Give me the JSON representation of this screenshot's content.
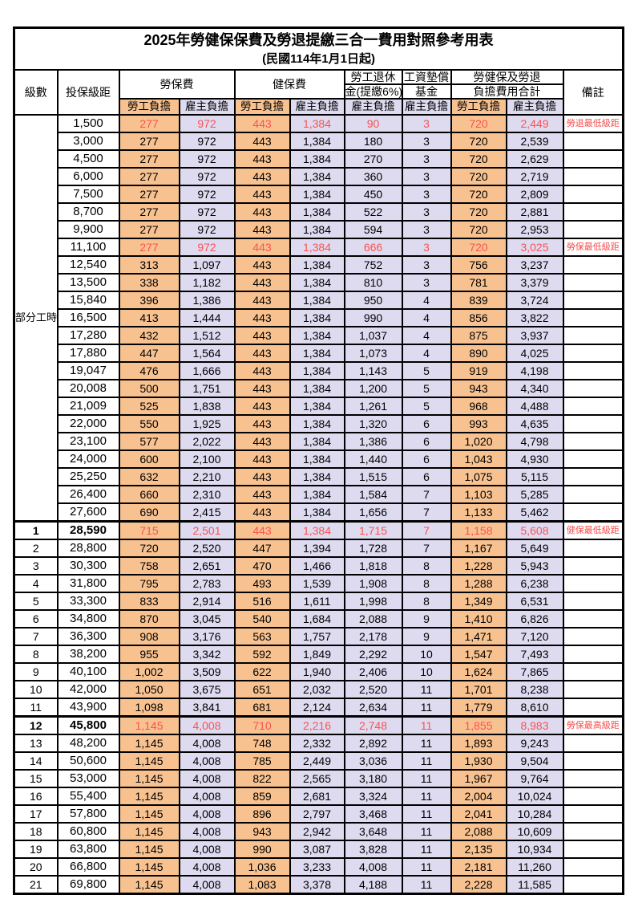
{
  "title": "2025年勞健保保費及勞退提繳三合一費用對照參考用表",
  "subtitle": "(民國114年1月1日起)",
  "header": {
    "level": "級數",
    "bracket": "投保級距",
    "labor_group": "勞保費",
    "health_group": "健保費",
    "pension_line1": "勞工退休",
    "pension_line2": "金(提繳6%)",
    "fund_line1": "工資墊償",
    "fund_line2": "基金",
    "total_line1": "勞健保及勞退",
    "total_line2": "負擔費用合計",
    "remark": "備註",
    "employee_label": "勞工負擔",
    "employer_label": "雇主負擔"
  },
  "part_time_label": "部分工時",
  "colors": {
    "employee_fill": "#F8C290",
    "employer_fill": "#DEDBF0",
    "highlight_text": "#FA5252",
    "grid": "#000000"
  },
  "rows": [
    {
      "level": "",
      "bracket": "1,500",
      "values": [
        "277",
        "972",
        "443",
        "1,384",
        "90",
        "3",
        "720",
        "2,449"
      ],
      "remark": "勞退最低級距",
      "red": true,
      "bold": false,
      "thick_top": false
    },
    {
      "level": "",
      "bracket": "3,000",
      "values": [
        "277",
        "972",
        "443",
        "1,384",
        "180",
        "3",
        "720",
        "2,539"
      ],
      "remark": "",
      "red": false,
      "bold": false,
      "thick_top": false
    },
    {
      "level": "",
      "bracket": "4,500",
      "values": [
        "277",
        "972",
        "443",
        "1,384",
        "270",
        "3",
        "720",
        "2,629"
      ],
      "remark": "",
      "red": false,
      "bold": false,
      "thick_top": false
    },
    {
      "level": "",
      "bracket": "6,000",
      "values": [
        "277",
        "972",
        "443",
        "1,384",
        "360",
        "3",
        "720",
        "2,719"
      ],
      "remark": "",
      "red": false,
      "bold": false,
      "thick_top": false
    },
    {
      "level": "",
      "bracket": "7,500",
      "values": [
        "277",
        "972",
        "443",
        "1,384",
        "450",
        "3",
        "720",
        "2,809"
      ],
      "remark": "",
      "red": false,
      "bold": false,
      "thick_top": false
    },
    {
      "level": "",
      "bracket": "8,700",
      "values": [
        "277",
        "972",
        "443",
        "1,384",
        "522",
        "3",
        "720",
        "2,881"
      ],
      "remark": "",
      "red": false,
      "bold": false,
      "thick_top": false
    },
    {
      "level": "",
      "bracket": "9,900",
      "values": [
        "277",
        "972",
        "443",
        "1,384",
        "594",
        "3",
        "720",
        "2,953"
      ],
      "remark": "",
      "red": false,
      "bold": false,
      "thick_top": false
    },
    {
      "level": "",
      "bracket": "11,100",
      "values": [
        "277",
        "972",
        "443",
        "1,384",
        "666",
        "3",
        "720",
        "3,025"
      ],
      "remark": "勞保最低級距",
      "red": true,
      "bold": false,
      "thick_top": false
    },
    {
      "level": "",
      "bracket": "12,540",
      "values": [
        "313",
        "1,097",
        "443",
        "1,384",
        "752",
        "3",
        "756",
        "3,237"
      ],
      "remark": "",
      "red": false,
      "bold": false,
      "thick_top": false
    },
    {
      "level": "",
      "bracket": "13,500",
      "values": [
        "338",
        "1,182",
        "443",
        "1,384",
        "810",
        "3",
        "781",
        "3,379"
      ],
      "remark": "",
      "red": false,
      "bold": false,
      "thick_top": false
    },
    {
      "level": "",
      "bracket": "15,840",
      "values": [
        "396",
        "1,386",
        "443",
        "1,384",
        "950",
        "4",
        "839",
        "3,724"
      ],
      "remark": "",
      "red": false,
      "bold": false,
      "thick_top": false
    },
    {
      "level": "",
      "bracket": "16,500",
      "values": [
        "413",
        "1,444",
        "443",
        "1,384",
        "990",
        "4",
        "856",
        "3,822"
      ],
      "remark": "",
      "red": false,
      "bold": false,
      "thick_top": false
    },
    {
      "level": "",
      "bracket": "17,280",
      "values": [
        "432",
        "1,512",
        "443",
        "1,384",
        "1,037",
        "4",
        "875",
        "3,937"
      ],
      "remark": "",
      "red": false,
      "bold": false,
      "thick_top": false
    },
    {
      "level": "",
      "bracket": "17,880",
      "values": [
        "447",
        "1,564",
        "443",
        "1,384",
        "1,073",
        "4",
        "890",
        "4,025"
      ],
      "remark": "",
      "red": false,
      "bold": false,
      "thick_top": false
    },
    {
      "level": "",
      "bracket": "19,047",
      "values": [
        "476",
        "1,666",
        "443",
        "1,384",
        "1,143",
        "5",
        "919",
        "4,198"
      ],
      "remark": "",
      "red": false,
      "bold": false,
      "thick_top": false
    },
    {
      "level": "",
      "bracket": "20,008",
      "values": [
        "500",
        "1,751",
        "443",
        "1,384",
        "1,200",
        "5",
        "943",
        "4,340"
      ],
      "remark": "",
      "red": false,
      "bold": false,
      "thick_top": false
    },
    {
      "level": "",
      "bracket": "21,009",
      "values": [
        "525",
        "1,838",
        "443",
        "1,384",
        "1,261",
        "5",
        "968",
        "4,488"
      ],
      "remark": "",
      "red": false,
      "bold": false,
      "thick_top": false
    },
    {
      "level": "",
      "bracket": "22,000",
      "values": [
        "550",
        "1,925",
        "443",
        "1,384",
        "1,320",
        "6",
        "993",
        "4,635"
      ],
      "remark": "",
      "red": false,
      "bold": false,
      "thick_top": false
    },
    {
      "level": "",
      "bracket": "23,100",
      "values": [
        "577",
        "2,022",
        "443",
        "1,384",
        "1,386",
        "6",
        "1,020",
        "4,798"
      ],
      "remark": "",
      "red": false,
      "bold": false,
      "thick_top": false
    },
    {
      "level": "",
      "bracket": "24,000",
      "values": [
        "600",
        "2,100",
        "443",
        "1,384",
        "1,440",
        "6",
        "1,043",
        "4,930"
      ],
      "remark": "",
      "red": false,
      "bold": false,
      "thick_top": false
    },
    {
      "level": "",
      "bracket": "25,250",
      "values": [
        "632",
        "2,210",
        "443",
        "1,384",
        "1,515",
        "6",
        "1,075",
        "5,115"
      ],
      "remark": "",
      "red": false,
      "bold": false,
      "thick_top": false
    },
    {
      "level": "",
      "bracket": "26,400",
      "values": [
        "660",
        "2,310",
        "443",
        "1,384",
        "1,584",
        "7",
        "1,103",
        "5,285"
      ],
      "remark": "",
      "red": false,
      "bold": false,
      "thick_top": false
    },
    {
      "level": "",
      "bracket": "27,600",
      "values": [
        "690",
        "2,415",
        "443",
        "1,384",
        "1,656",
        "7",
        "1,133",
        "5,462"
      ],
      "remark": "",
      "red": false,
      "bold": false,
      "thick_top": false
    },
    {
      "level": "1",
      "bracket": "28,590",
      "values": [
        "715",
        "2,501",
        "443",
        "1,384",
        "1,715",
        "7",
        "1,158",
        "5,608"
      ],
      "remark": "健保最低級距",
      "red": true,
      "bold": true,
      "thick_top": true
    },
    {
      "level": "2",
      "bracket": "28,800",
      "values": [
        "720",
        "2,520",
        "447",
        "1,394",
        "1,728",
        "7",
        "1,167",
        "5,649"
      ],
      "remark": "",
      "red": false,
      "bold": false,
      "thick_top": false
    },
    {
      "level": "3",
      "bracket": "30,300",
      "values": [
        "758",
        "2,651",
        "470",
        "1,466",
        "1,818",
        "8",
        "1,228",
        "5,943"
      ],
      "remark": "",
      "red": false,
      "bold": false,
      "thick_top": false
    },
    {
      "level": "4",
      "bracket": "31,800",
      "values": [
        "795",
        "2,783",
        "493",
        "1,539",
        "1,908",
        "8",
        "1,288",
        "6,238"
      ],
      "remark": "",
      "red": false,
      "bold": false,
      "thick_top": false
    },
    {
      "level": "5",
      "bracket": "33,300",
      "values": [
        "833",
        "2,914",
        "516",
        "1,611",
        "1,998",
        "8",
        "1,349",
        "6,531"
      ],
      "remark": "",
      "red": false,
      "bold": false,
      "thick_top": false
    },
    {
      "level": "6",
      "bracket": "34,800",
      "values": [
        "870",
        "3,045",
        "540",
        "1,684",
        "2,088",
        "9",
        "1,410",
        "6,826"
      ],
      "remark": "",
      "red": false,
      "bold": false,
      "thick_top": false
    },
    {
      "level": "7",
      "bracket": "36,300",
      "values": [
        "908",
        "3,176",
        "563",
        "1,757",
        "2,178",
        "9",
        "1,471",
        "7,120"
      ],
      "remark": "",
      "red": false,
      "bold": false,
      "thick_top": false
    },
    {
      "level": "8",
      "bracket": "38,200",
      "values": [
        "955",
        "3,342",
        "592",
        "1,849",
        "2,292",
        "10",
        "1,547",
        "7,493"
      ],
      "remark": "",
      "red": false,
      "bold": false,
      "thick_top": false
    },
    {
      "level": "9",
      "bracket": "40,100",
      "values": [
        "1,002",
        "3,509",
        "622",
        "1,940",
        "2,406",
        "10",
        "1,624",
        "7,865"
      ],
      "remark": "",
      "red": false,
      "bold": false,
      "thick_top": false
    },
    {
      "level": "10",
      "bracket": "42,000",
      "values": [
        "1,050",
        "3,675",
        "651",
        "2,032",
        "2,520",
        "11",
        "1,701",
        "8,238"
      ],
      "remark": "",
      "red": false,
      "bold": false,
      "thick_top": false
    },
    {
      "level": "11",
      "bracket": "43,900",
      "values": [
        "1,098",
        "3,841",
        "681",
        "2,124",
        "2,634",
        "11",
        "1,779",
        "8,610"
      ],
      "remark": "",
      "red": false,
      "bold": false,
      "thick_top": false
    },
    {
      "level": "12",
      "bracket": "45,800",
      "values": [
        "1,145",
        "4,008",
        "710",
        "2,216",
        "2,748",
        "11",
        "1,855",
        "8,983"
      ],
      "remark": "勞保最高級距",
      "red": true,
      "bold": true,
      "thick_top": true
    },
    {
      "level": "13",
      "bracket": "48,200",
      "values": [
        "1,145",
        "4,008",
        "748",
        "2,332",
        "2,892",
        "11",
        "1,893",
        "9,243"
      ],
      "remark": "",
      "red": false,
      "bold": false,
      "thick_top": false
    },
    {
      "level": "14",
      "bracket": "50,600",
      "values": [
        "1,145",
        "4,008",
        "785",
        "2,449",
        "3,036",
        "11",
        "1,930",
        "9,504"
      ],
      "remark": "",
      "red": false,
      "bold": false,
      "thick_top": false
    },
    {
      "level": "15",
      "bracket": "53,000",
      "values": [
        "1,145",
        "4,008",
        "822",
        "2,565",
        "3,180",
        "11",
        "1,967",
        "9,764"
      ],
      "remark": "",
      "red": false,
      "bold": false,
      "thick_top": false
    },
    {
      "level": "16",
      "bracket": "55,400",
      "values": [
        "1,145",
        "4,008",
        "859",
        "2,681",
        "3,324",
        "11",
        "2,004",
        "10,024"
      ],
      "remark": "",
      "red": false,
      "bold": false,
      "thick_top": false
    },
    {
      "level": "17",
      "bracket": "57,800",
      "values": [
        "1,145",
        "4,008",
        "896",
        "2,797",
        "3,468",
        "11",
        "2,041",
        "10,284"
      ],
      "remark": "",
      "red": false,
      "bold": false,
      "thick_top": false
    },
    {
      "level": "18",
      "bracket": "60,800",
      "values": [
        "1,145",
        "4,008",
        "943",
        "2,942",
        "3,648",
        "11",
        "2,088",
        "10,609"
      ],
      "remark": "",
      "red": false,
      "bold": false,
      "thick_top": false
    },
    {
      "level": "19",
      "bracket": "63,800",
      "values": [
        "1,145",
        "4,008",
        "990",
        "3,087",
        "3,828",
        "11",
        "2,135",
        "10,934"
      ],
      "remark": "",
      "red": false,
      "bold": false,
      "thick_top": false
    },
    {
      "level": "20",
      "bracket": "66,800",
      "values": [
        "1,145",
        "4,008",
        "1,036",
        "3,233",
        "4,008",
        "11",
        "2,181",
        "11,260"
      ],
      "remark": "",
      "red": false,
      "bold": false,
      "thick_top": false
    },
    {
      "level": "21",
      "bracket": "69,800",
      "values": [
        "1,145",
        "4,008",
        "1,083",
        "3,378",
        "4,188",
        "11",
        "2,228",
        "11,585"
      ],
      "remark": "",
      "red": false,
      "bold": false,
      "thick_top": false
    }
  ]
}
